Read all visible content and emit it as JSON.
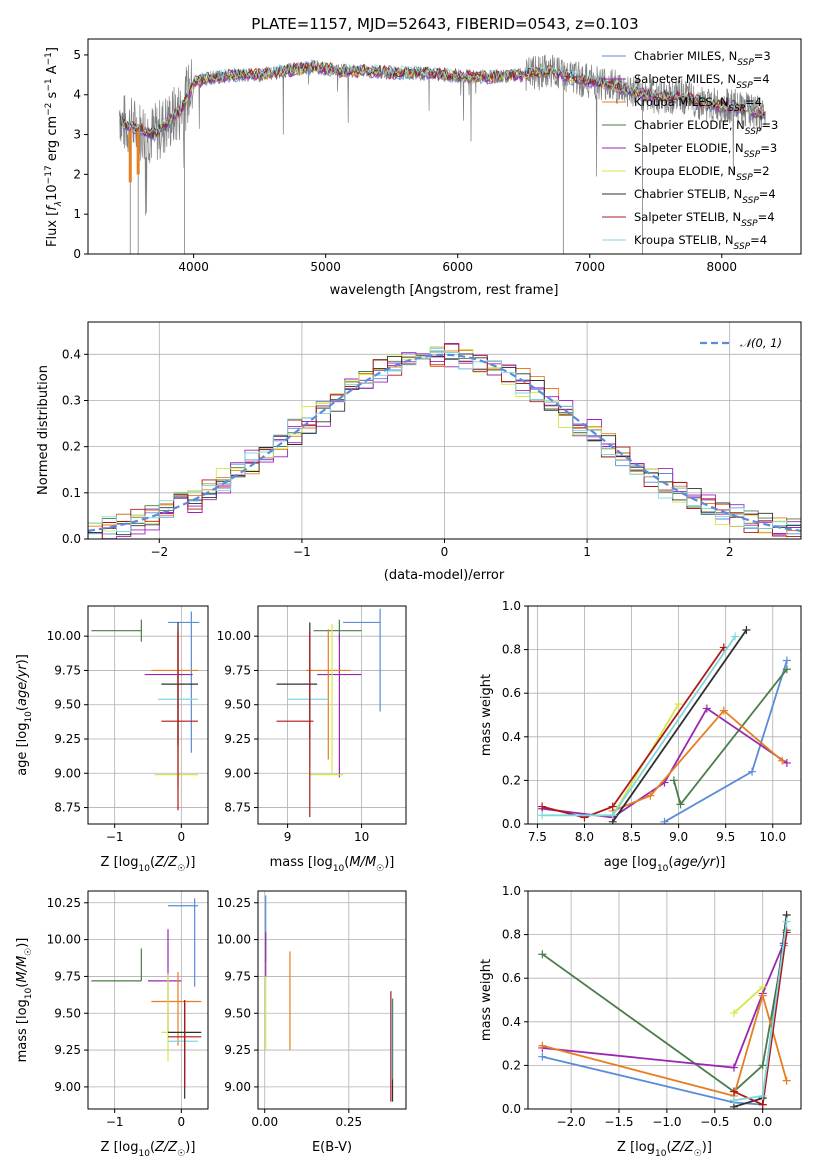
{
  "figure": {
    "title": "PLATE=1157, MJD=52643, FIBERID=0543, z=0.103"
  },
  "colors": {
    "chabrier_miles": "#5b8bd9",
    "salpeter_miles": "#9b27b0",
    "kroupa_miles": "#e67e22",
    "chabrier_elodie": "#4a7d4a",
    "salpeter_elodie": "#a020c0",
    "kroupa_elodie": "#d4e84a",
    "chabrier_stelib": "#303030",
    "salpeter_stelib": "#b01818",
    "kroupa_stelib": "#7fd8e0",
    "data": "#808080",
    "gaussian": "#5b8bd9"
  },
  "chart_data": [
    {
      "id": "spectrum",
      "type": "line",
      "title": "PLATE=1157, MJD=52643, FIBERID=0543, z=0.103",
      "xlabel": "wavelength [Angstrom, rest frame]",
      "ylabel": "Flux [f_λ 10^-17 erg cm^-2 s^-1 A^-1]",
      "xlim": [
        3200,
        8600
      ],
      "ylim": [
        0,
        5.4
      ],
      "xticks": [
        "4000",
        "5000",
        "6000",
        "7000",
        "8000"
      ],
      "yticks": [
        "0",
        "1",
        "2",
        "3",
        "4",
        "5"
      ],
      "grid": false,
      "legend_position": "upper-right",
      "legend": [
        {
          "name": "Chabrier MILES, N_SSP=3",
          "base": "Chabrier MILES, N",
          "sub": "SSP",
          "tail": "=3",
          "color_key": "chabrier_miles"
        },
        {
          "name": "Salpeter MILES, N_SSP=4",
          "base": "Salpeter MILES, N",
          "sub": "SSP",
          "tail": "=4",
          "color_key": "salpeter_miles"
        },
        {
          "name": "Kroupa MILES, N_SSP=4",
          "base": "Kroupa MILES, N",
          "sub": "SSP",
          "tail": "=4",
          "color_key": "kroupa_miles"
        },
        {
          "name": "Chabrier ELODIE, N_SSP=3",
          "base": "Chabrier ELODIE, N",
          "sub": "SSP",
          "tail": "=3",
          "color_key": "chabrier_elodie"
        },
        {
          "name": "Salpeter ELODIE, N_SSP=3",
          "base": "Salpeter ELODIE, N",
          "sub": "SSP",
          "tail": "=3",
          "color_key": "salpeter_elodie"
        },
        {
          "name": "Kroupa ELODIE, N_SSP=2",
          "base": "Kroupa ELODIE, N",
          "sub": "SSP",
          "tail": "=2",
          "color_key": "kroupa_elodie"
        },
        {
          "name": "Chabrier STELIB, N_SSP=4",
          "base": "Chabrier STELIB, N",
          "sub": "SSP",
          "tail": "=4",
          "color_key": "chabrier_stelib"
        },
        {
          "name": "Salpeter STELIB, N_SSP=4",
          "base": "Salpeter STELIB, N",
          "sub": "SSP",
          "tail": "=4",
          "color_key": "salpeter_stelib"
        },
        {
          "name": "Kroupa STELIB, N_SSP=4",
          "base": "Kroupa STELIB, N",
          "sub": "SSP",
          "tail": "=4",
          "color_key": "kroupa_stelib"
        }
      ],
      "data_envelope": {
        "x": [
          3450,
          3600,
          3700,
          3800,
          3900,
          4000,
          4100,
          4300,
          4500,
          4700,
          4900,
          5100,
          5300,
          5500,
          5700,
          5900,
          6100,
          6300,
          6500,
          6700,
          6900,
          7100,
          7300,
          7500,
          7700,
          7900,
          8100,
          8300
        ],
        "y": [
          3.3,
          3.1,
          3.0,
          3.3,
          3.6,
          4.3,
          4.4,
          4.5,
          4.5,
          4.6,
          4.7,
          4.6,
          4.6,
          4.55,
          4.55,
          4.5,
          4.45,
          4.45,
          4.5,
          4.6,
          4.4,
          4.3,
          4.1,
          3.95,
          3.95,
          3.75,
          3.7,
          3.5
        ],
        "spikes": [
          {
            "x": 3520,
            "y": 0
          },
          {
            "x": 3580,
            "y": 0
          },
          {
            "x": 3930,
            "y": 0
          },
          {
            "x": 6800,
            "y": 0
          },
          {
            "x": 7400,
            "y": 0
          }
        ]
      }
    },
    {
      "id": "residuals",
      "type": "step",
      "xlabel": "(data-model)/error",
      "ylabel": "Normed distribution",
      "xlim": [
        -2.5,
        2.5
      ],
      "ylim": [
        0,
        0.47
      ],
      "xticks": [
        "−2",
        "−1",
        "0",
        "1",
        "2"
      ],
      "yticks": [
        "0.0",
        "0.1",
        "0.2",
        "0.3",
        "0.4"
      ],
      "grid": true,
      "legend_position": "upper-right",
      "legend": [
        {
          "name": "𝒩(0,1)",
          "color_key": "gaussian",
          "style": "dashed"
        }
      ],
      "bin_width": 0.1,
      "bin_start": -2.5,
      "series": [
        {
          "name": "Chabrier MILES",
          "color_key": "chabrier_miles",
          "offset": 0.0
        },
        {
          "name": "Salpeter MILES",
          "color_key": "salpeter_miles",
          "offset": 0.012
        },
        {
          "name": "Kroupa MILES",
          "color_key": "kroupa_miles",
          "offset": -0.01
        },
        {
          "name": "Chabrier ELODIE",
          "color_key": "chabrier_elodie",
          "offset": 0.008
        },
        {
          "name": "Salpeter ELODIE",
          "color_key": "salpeter_elodie",
          "offset": -0.015
        },
        {
          "name": "Kroupa ELODIE",
          "color_key": "kroupa_elodie",
          "offset": 0.018
        },
        {
          "name": "Chabrier STELIB",
          "color_key": "chabrier_stelib",
          "offset": -0.006
        },
        {
          "name": "Salpeter STELIB",
          "color_key": "salpeter_stelib",
          "offset": 0.005
        },
        {
          "name": "Kroupa STELIB",
          "color_key": "kroupa_stelib",
          "offset": 0.015
        }
      ]
    },
    {
      "id": "age_vs_Z",
      "type": "errorbar",
      "xlabel": "Z [log10(Z/Z☉)]",
      "ylabel": "age [log10(age/yr)]",
      "xlim": [
        -1.4,
        0.4
      ],
      "ylim": [
        8.63,
        10.22
      ],
      "xticks": [
        "−1",
        "0"
      ],
      "yticks": [
        "8.75",
        "9.00",
        "9.25",
        "9.50",
        "9.75",
        "10.00"
      ],
      "grid": true,
      "points": [
        {
          "color_key": "chabrier_miles",
          "x": 0.15,
          "xerr": [
            0.35,
            0.12
          ],
          "y": 10.1,
          "yerr": [
            0.95,
            0.08
          ]
        },
        {
          "color_key": "chabrier_elodie",
          "x": -0.6,
          "xerr": [
            0.75,
            0
          ],
          "y": 10.04,
          "yerr": [
            0.08,
            0.08
          ]
        },
        {
          "color_key": "salpeter_miles",
          "x": -0.05,
          "xerr": [
            0.5,
            0.22
          ],
          "y": 9.72,
          "yerr": [
            0.5,
            0.3
          ]
        },
        {
          "color_key": "kroupa_miles",
          "x": -0.05,
          "xerr": [
            0.4,
            0.3
          ],
          "y": 9.75,
          "yerr": [
            0.85,
            0.3
          ]
        },
        {
          "color_key": "kroupa_elodie",
          "x": -0.05,
          "xerr": [
            0.35,
            0.3
          ],
          "y": 8.99,
          "yerr": [
            0,
            1.05
          ]
        },
        {
          "color_key": "kroupa_stelib",
          "x": -0.05,
          "xerr": [
            0.3,
            0.3
          ],
          "y": 9.54,
          "yerr": [
            0.4,
            0.45
          ]
        },
        {
          "color_key": "chabrier_stelib",
          "x": -0.05,
          "xerr": [
            0.25,
            0.3
          ],
          "y": 9.65,
          "yerr": [
            0.45,
            0.45
          ]
        },
        {
          "color_key": "salpeter_stelib",
          "x": -0.05,
          "xerr": [
            0.25,
            0.3
          ],
          "y": 9.38,
          "yerr": [
            0.65,
            0.65
          ]
        }
      ]
    },
    {
      "id": "age_vs_mass",
      "type": "errorbar",
      "xlabel": "mass [log10(M/M☉)]",
      "ylabel": "",
      "xlim": [
        8.6,
        10.6
      ],
      "ylim": [
        8.63,
        10.22
      ],
      "xticks": [
        "9",
        "10"
      ],
      "yticks": [
        "8.75",
        "9.00",
        "9.25",
        "9.50",
        "9.75",
        "10.00"
      ],
      "grid": true,
      "points": [
        {
          "color_key": "chabrier_miles",
          "x": 10.25,
          "xerr": [
            0.5,
            0
          ],
          "y": 10.1,
          "yerr": [
            0.65,
            0.1
          ]
        },
        {
          "color_key": "chabrier_elodie",
          "x": 9.7,
          "xerr": [
            0.35,
            0.3
          ],
          "y": 10.04,
          "yerr": [
            0.08,
            0.08
          ]
        },
        {
          "color_key": "salpeter_miles",
          "x": 9.7,
          "xerr": [
            0.3,
            0.3
          ],
          "y": 9.72,
          "yerr": [
            0.75,
            0.3
          ]
        },
        {
          "color_key": "kroupa_miles",
          "x": 9.55,
          "xerr": [
            0.3,
            0.3
          ],
          "y": 9.75,
          "yerr": [
            0.65,
            0.3
          ]
        },
        {
          "color_key": "kroupa_elodie",
          "x": 9.6,
          "xerr": [
            0.3,
            0.15
          ],
          "y": 8.99,
          "yerr": [
            0,
            1.1
          ]
        },
        {
          "color_key": "kroupa_stelib",
          "x": 9.3,
          "xerr": [
            0.3,
            0.25
          ],
          "y": 9.54,
          "yerr": [
            0.5,
            0.45
          ]
        },
        {
          "color_key": "chabrier_stelib",
          "x": 9.3,
          "xerr": [
            0.45,
            0.1
          ],
          "y": 9.65,
          "yerr": [
            0.4,
            0.45
          ]
        },
        {
          "color_key": "salpeter_stelib",
          "x": 9.3,
          "xerr": [
            0.45,
            0.05
          ],
          "y": 9.38,
          "yerr": [
            0.7,
            0.65
          ]
        }
      ]
    },
    {
      "id": "weight_vs_age",
      "type": "line",
      "xlabel": "age [log10(age/yr)]",
      "ylabel": "mass weight",
      "xlim": [
        7.4,
        10.3
      ],
      "ylim": [
        0,
        1.0
      ],
      "xticks": [
        "7.5",
        "8.0",
        "8.5",
        "9.0",
        "9.5",
        "10.0"
      ],
      "yticks": [
        "0.0",
        "0.2",
        "0.4",
        "0.6",
        "0.8",
        "1.0"
      ],
      "grid": true,
      "series": [
        {
          "color_key": "chabrier_miles",
          "x": [
            8.85,
            9.78,
            10.15
          ],
          "y": [
            0.01,
            0.24,
            0.75
          ]
        },
        {
          "color_key": "chabrier_elodie",
          "x": [
            8.95,
            9.02,
            10.15
          ],
          "y": [
            0.2,
            0.09,
            0.71
          ]
        },
        {
          "color_key": "salpeter_miles",
          "x": [
            7.55,
            8.3,
            8.85,
            9.3,
            10.15
          ],
          "y": [
            0.07,
            0.03,
            0.19,
            0.53,
            0.28
          ]
        },
        {
          "color_key": "kroupa_miles",
          "x": [
            8.3,
            8.7,
            9.48,
            10.1
          ],
          "y": [
            0.06,
            0.13,
            0.52,
            0.29
          ]
        },
        {
          "color_key": "kroupa_elodie",
          "x": [
            8.3,
            9.0
          ],
          "y": [
            0.04,
            0.55
          ]
        },
        {
          "color_key": "chabrier_stelib",
          "x": [
            8.3,
            9.72
          ],
          "y": [
            0.01,
            0.89
          ]
        },
        {
          "color_key": "salpeter_stelib",
          "x": [
            7.55,
            8.0,
            8.3,
            9.48
          ],
          "y": [
            0.08,
            0.03,
            0.08,
            0.81
          ]
        },
        {
          "color_key": "kroupa_stelib",
          "x": [
            7.55,
            8.3,
            9.6
          ],
          "y": [
            0.04,
            0.04,
            0.86
          ]
        }
      ]
    },
    {
      "id": "mass_vs_Z",
      "type": "errorbar",
      "xlabel": "Z [log10(Z/Z☉)]",
      "ylabel": "mass [log10(M/M☉)]",
      "xlim": [
        -1.4,
        0.4
      ],
      "ylim": [
        8.85,
        10.33
      ],
      "xticks": [
        "−1",
        "0"
      ],
      "yticks": [
        "9.00",
        "9.25",
        "9.50",
        "9.75",
        "10.00",
        "10.25"
      ],
      "grid": true,
      "points": [
        {
          "color_key": "chabrier_miles",
          "x": 0.2,
          "xerr": [
            0.4,
            0.05
          ],
          "y": 10.23,
          "yerr": [
            0.55,
            0.05
          ]
        },
        {
          "color_key": "chabrier_elodie",
          "x": -0.6,
          "xerr": [
            0.75,
            0
          ],
          "y": 9.72,
          "yerr": [
            0.0,
            0.22
          ]
        },
        {
          "color_key": "salpeter_miles",
          "x": -0.2,
          "xerr": [
            0.3,
            0.2
          ],
          "y": 9.72,
          "yerr": [
            0.35,
            0.35
          ]
        },
        {
          "color_key": "kroupa_miles",
          "x": -0.05,
          "xerr": [
            0.4,
            0.35
          ],
          "y": 9.58,
          "yerr": [
            0.3,
            0.2
          ]
        },
        {
          "color_key": "kroupa_elodie",
          "x": -0.2,
          "xerr": [
            0.1,
            0.4
          ],
          "y": 9.37,
          "yerr": [
            0.2,
            0.4
          ]
        },
        {
          "color_key": "kroupa_stelib",
          "x": 0.05,
          "xerr": [
            0.25,
            0.2
          ],
          "y": 9.31,
          "yerr": [
            0.2,
            0.2
          ]
        },
        {
          "color_key": "chabrier_stelib",
          "x": 0.05,
          "xerr": [
            0.25,
            0.25
          ],
          "y": 9.37,
          "yerr": [
            0.45,
            0.2
          ]
        },
        {
          "color_key": "salpeter_stelib",
          "x": 0.05,
          "xerr": [
            0.25,
            0.25
          ],
          "y": 9.34,
          "yerr": [
            0.35,
            0.25
          ]
        }
      ]
    },
    {
      "id": "mass_vs_EBV",
      "type": "errorbar",
      "xlabel": "E(B-V)",
      "ylabel": "",
      "xlim": [
        -0.02,
        0.42
      ],
      "ylim": [
        8.85,
        10.33
      ],
      "xticks": [
        "0.00",
        "0.25"
      ],
      "yticks": [
        "9.00",
        "9.25",
        "9.50",
        "9.75",
        "10.00",
        "10.25"
      ],
      "grid": true,
      "points": [
        {
          "color_key": "chabrier_miles",
          "x": 0.003,
          "xerr": [
            0,
            0
          ],
          "y": 10.1,
          "yerr": [
            0.25,
            0.2
          ]
        },
        {
          "color_key": "salpeter_miles",
          "x": 0.003,
          "xerr": [
            0,
            0
          ],
          "y": 9.9,
          "yerr": [
            0.15,
            0.15
          ]
        },
        {
          "color_key": "kroupa_elodie",
          "x": 0.003,
          "xerr": [
            0,
            0
          ],
          "y": 9.55,
          "yerr": [
            0.3,
            0.2
          ]
        },
        {
          "color_key": "kroupa_miles",
          "x": 0.075,
          "xerr": [
            0,
            0
          ],
          "y": 9.6,
          "yerr": [
            0.35,
            0.32
          ]
        },
        {
          "color_key": "salpeter_stelib",
          "x": 0.375,
          "xerr": [
            0,
            0
          ],
          "y": 9.3,
          "yerr": [
            0.4,
            0.35
          ]
        },
        {
          "color_key": "chabrier_stelib",
          "x": 0.38,
          "xerr": [
            0,
            0
          ],
          "y": 9.3,
          "yerr": [
            0.4,
            0.3
          ]
        },
        {
          "color_key": "kroupa_stelib",
          "x": 0.378,
          "xerr": [
            0,
            0
          ],
          "y": 9.35,
          "yerr": [
            0.3,
            0.25
          ]
        }
      ]
    },
    {
      "id": "weight_vs_Z",
      "type": "line",
      "xlabel": "Z [log10(Z/Z☉)]",
      "ylabel": "mass weight",
      "xlim": [
        -2.45,
        0.4
      ],
      "ylim": [
        0,
        1.0
      ],
      "xticks": [
        "−2.0",
        "−1.5",
        "−1.0",
        "−0.5",
        "0.0"
      ],
      "yticks": [
        "0.0",
        "0.2",
        "0.4",
        "0.6",
        "0.8",
        "1.0"
      ],
      "grid": true,
      "series": [
        {
          "color_key": "chabrier_miles",
          "x": [
            -2.3,
            -0.3,
            0.0,
            0.22
          ],
          "y": [
            0.24,
            0.03,
            0.02,
            0.75
          ]
        },
        {
          "color_key": "chabrier_elodie",
          "x": [
            -2.3,
            -0.3,
            0.0,
            0.25
          ],
          "y": [
            0.71,
            0.08,
            0.2,
            0.82
          ]
        },
        {
          "color_key": "salpeter_miles",
          "x": [
            -2.3,
            -0.3,
            0.0,
            0.22
          ],
          "y": [
            0.28,
            0.19,
            0.53,
            0.76
          ]
        },
        {
          "color_key": "kroupa_miles",
          "x": [
            -2.3,
            -0.3,
            0.0,
            0.25
          ],
          "y": [
            0.29,
            0.06,
            0.52,
            0.13
          ]
        },
        {
          "color_key": "kroupa_elodie",
          "x": [
            -0.3,
            0.0
          ],
          "y": [
            0.44,
            0.56
          ]
        },
        {
          "color_key": "chabrier_stelib",
          "x": [
            -0.3,
            0.0,
            0.25
          ],
          "y": [
            0.01,
            0.05,
            0.89
          ]
        },
        {
          "color_key": "salpeter_stelib",
          "x": [
            -0.3,
            0.0,
            0.25
          ],
          "y": [
            0.08,
            0.02,
            0.81
          ]
        },
        {
          "color_key": "kroupa_stelib",
          "x": [
            -0.3,
            0.0,
            0.25
          ],
          "y": [
            0.04,
            0.06,
            0.86
          ]
        }
      ]
    }
  ]
}
